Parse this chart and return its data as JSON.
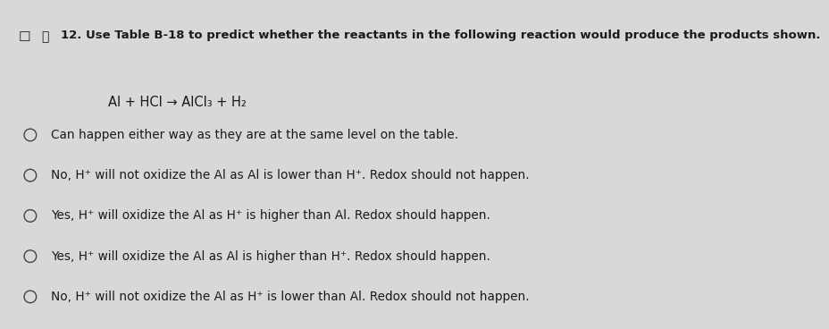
{
  "background_color": "#d8d8d8",
  "title_bold": "12. Use Table B-18 to predict whether the reactants in the following reaction would produce the products shown.",
  "reaction_line": "Al + HCl → AlCl₃ + H₂",
  "options": [
    "Can happen either way as they are at the same level on the table.",
    "No, H⁺ will not oxidize the Al as Al is lower than H⁺. Redox should not happen.",
    "Yes, H⁺ will oxidize the Al as H⁺ is higher than Al. Redox should happen.",
    "Yes, H⁺ will oxidize the Al as Al is higher than H⁺. Redox should happen.",
    "No, H⁺ will not oxidize the Al as H⁺ is lower than Al. Redox should not happen."
  ],
  "circle_color": "#444444",
  "text_color": "#1a1a1a",
  "title_fontsize": 9.5,
  "reaction_fontsize": 10.5,
  "option_fontsize": 9.8
}
